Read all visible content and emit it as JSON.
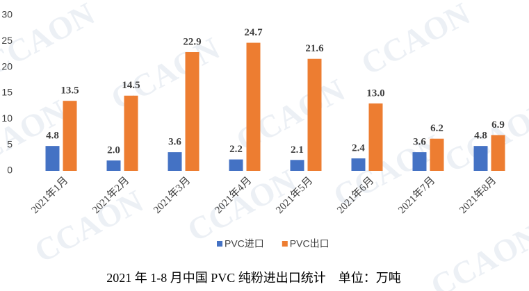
{
  "chart_data": {
    "type": "bar",
    "title": "2021 年 1-8 月中国 PVC 纯粉进出口统计　单位：万吨",
    "watermark": "CCAON",
    "categories": [
      "2021年1月",
      "2021年2月",
      "2021年3月",
      "2021年4月",
      "2021年5月",
      "2021年6月",
      "2021年7月",
      "2021年8月"
    ],
    "series": [
      {
        "name": "PVC进口",
        "color": "#4472c4",
        "values": [
          4.8,
          2.0,
          3.6,
          2.2,
          2.1,
          2.4,
          3.6,
          4.8
        ],
        "value_labels": [
          "4.8",
          "2.0",
          "3.6",
          "2.2",
          "2.1",
          "2.4",
          "3.6",
          "4.8"
        ]
      },
      {
        "name": "PVC出口",
        "color": "#ed7d31",
        "values": [
          13.5,
          14.5,
          22.9,
          24.7,
          21.6,
          13.0,
          6.2,
          6.9
        ],
        "value_labels": [
          "13.5",
          "14.5",
          "22.9",
          "24.7",
          "21.6",
          "13.0",
          "6.2",
          "6.9"
        ]
      }
    ],
    "ylim": [
      0,
      30
    ],
    "yticks": [
      0,
      5,
      10,
      15,
      20,
      25,
      30
    ],
    "grid": false,
    "legend": "bottom"
  }
}
